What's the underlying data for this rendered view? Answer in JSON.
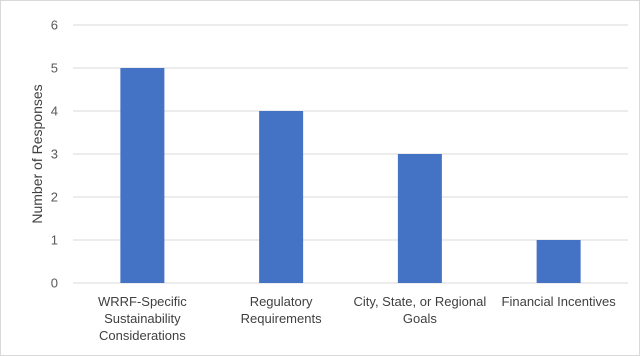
{
  "chart_data": {
    "type": "bar",
    "title": "",
    "xlabel": "",
    "ylabel": "Number of Responses",
    "categories": [
      [
        "WRRF-Specific",
        "Sustainability",
        "Considerations"
      ],
      [
        "Regulatory",
        "Requirements"
      ],
      [
        "City, State, or Regional",
        "Goals"
      ],
      [
        "Financial Incentives"
      ]
    ],
    "values": [
      5,
      4,
      3,
      1
    ],
    "ylim": [
      0,
      6
    ],
    "yticks": [
      0,
      1,
      2,
      3,
      4,
      5,
      6
    ],
    "grid": true,
    "legend": "none",
    "bar_color": "#4472c4",
    "grid_color": "#d9d9d9"
  }
}
